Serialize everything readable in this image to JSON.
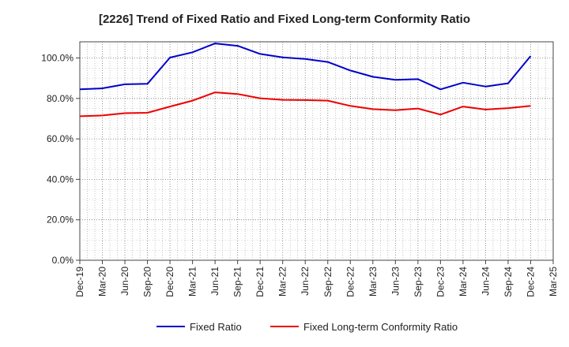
{
  "chart_data": {
    "type": "line",
    "title": "[2226]  Trend of Fixed Ratio and Fixed Long-term Conformity Ratio",
    "xlabel": "",
    "ylabel": "",
    "categories": [
      "Dec-19",
      "Mar-20",
      "Jun-20",
      "Sep-20",
      "Dec-20",
      "Mar-21",
      "Jun-21",
      "Sep-21",
      "Dec-21",
      "Mar-22",
      "Jun-22",
      "Sep-22",
      "Dec-22",
      "Mar-23",
      "Jun-23",
      "Sep-23",
      "Dec-23",
      "Mar-24",
      "Jun-24",
      "Sep-24",
      "Dec-24",
      "Mar-25"
    ],
    "ylim": [
      0,
      108
    ],
    "yticks": [
      0,
      20,
      40,
      60,
      80,
      100
    ],
    "ytick_labels": [
      "0.0%",
      "20.0%",
      "40.0%",
      "60.0%",
      "80.0%",
      "100.0%"
    ],
    "grid": true,
    "legend_position": "bottom",
    "series": [
      {
        "name": "Fixed Ratio",
        "color": "#0000cc",
        "values": [
          84.5,
          85.0,
          87.0,
          87.2,
          100.2,
          102.8,
          107.2,
          106.0,
          102.0,
          100.3,
          99.5,
          98.0,
          93.8,
          90.7,
          89.2,
          89.5,
          84.5,
          87.8,
          85.9,
          87.5,
          101.0,
          null
        ]
      },
      {
        "name": "Fixed Long-term Conformity Ratio",
        "color": "#ee0000",
        "values": [
          71.2,
          71.6,
          72.7,
          72.9,
          76.0,
          78.9,
          83.0,
          82.2,
          80.1,
          79.3,
          79.2,
          78.9,
          76.3,
          74.7,
          74.2,
          75.0,
          72.0,
          76.0,
          74.5,
          75.2,
          76.3,
          null
        ]
      }
    ]
  }
}
